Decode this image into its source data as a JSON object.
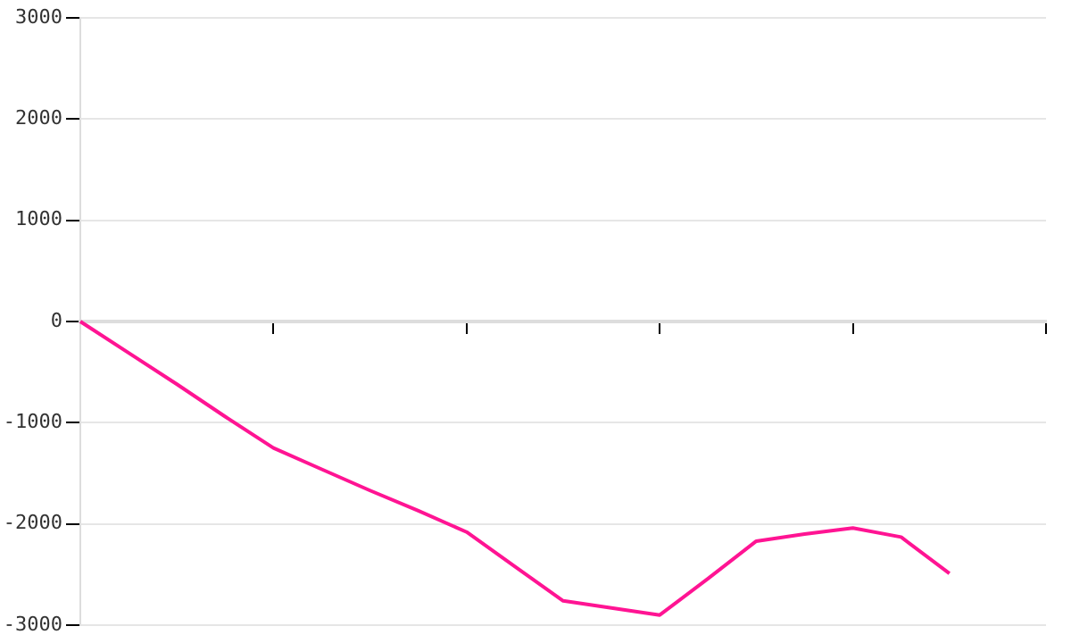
{
  "chart_data": {
    "type": "line",
    "categories": [
      null,
      null,
      null,
      null,
      null,
      null,
      null,
      null,
      null,
      null,
      null,
      null,
      null,
      null,
      null,
      null,
      null,
      null,
      null,
      null,
      null
    ],
    "series": [
      {
        "color": "#ff1493",
        "values": [
          0,
          -310,
          -620,
          -940,
          -1250,
          -1460,
          -1670,
          -1870,
          -2080,
          -2420,
          -2760,
          -2830,
          -2900,
          -2540,
          -2170,
          -2100,
          -2040,
          -2130,
          -2490,
          null,
          null
        ]
      }
    ],
    "ylim": [
      -3000,
      3000
    ],
    "yticks": [
      -3000,
      -2000,
      -1000,
      0,
      1000,
      2000,
      3000
    ],
    "tick_labels": "y",
    "grid": "y",
    "legend": false,
    "marker": "none",
    "line_style": "solid"
  }
}
